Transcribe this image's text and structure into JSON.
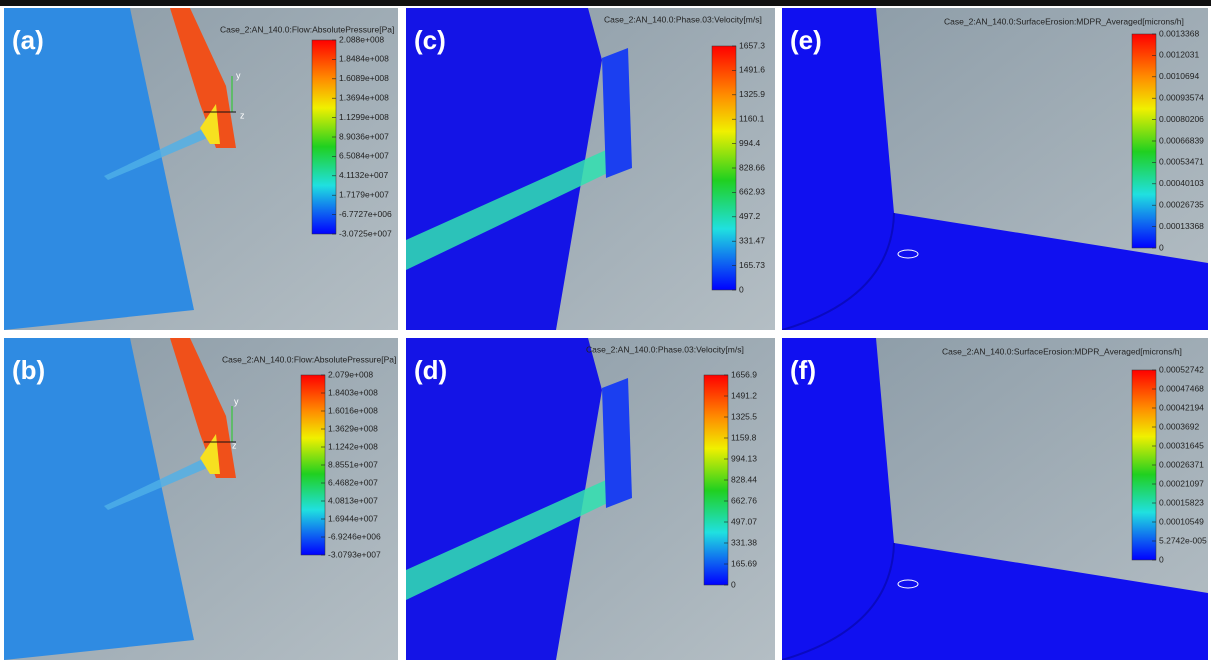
{
  "panels": [
    {
      "label": "(a)",
      "title": "Case_2:AN_140.0:Flow:AbsolutePressure[Pa]",
      "axes": [
        "y",
        "z"
      ],
      "ticks": [
        "2.088e+008",
        "1.8484e+008",
        "1.6089e+008",
        "1.3694e+008",
        "1.1299e+008",
        "8.9036e+007",
        "6.5084e+007",
        "4.1132e+007",
        "1.7179e+007",
        "-6.7727e+006",
        "-3.0725e+007"
      ]
    },
    {
      "label": "(c)",
      "title": "Case_2:AN_140.0:Phase.03:Velocity[m/s]",
      "ticks": [
        "1657.3",
        "1491.6",
        "1325.9",
        "1160.1",
        "994.4",
        "828.66",
        "662.93",
        "497.2",
        "331.47",
        "165.73",
        "0"
      ]
    },
    {
      "label": "(e)",
      "title": "Case_2:AN_140.0:SurfaceErosion:MDPR_Averaged[microns/h]",
      "ticks": [
        "0.0013368",
        "0.0012031",
        "0.0010694",
        "0.00093574",
        "0.00080206",
        "0.00066839",
        "0.00053471",
        "0.00040103",
        "0.00026735",
        "0.00013368",
        "0"
      ]
    },
    {
      "label": "(b)",
      "title": "Case_2:AN_140.0:Flow:AbsolutePressure[Pa]",
      "axes": [
        "y",
        "z"
      ],
      "ticks": [
        "2.079e+008",
        "1.8403e+008",
        "1.6016e+008",
        "1.3629e+008",
        "1.1242e+008",
        "8.8551e+007",
        "6.4682e+007",
        "4.0813e+007",
        "1.6944e+007",
        "-6.9246e+006",
        "-3.0793e+007"
      ]
    },
    {
      "label": "(d)",
      "title": "Case_2:AN_140.0:Phase.03:Velocity[m/s]",
      "ticks": [
        "1656.9",
        "1491.2",
        "1325.5",
        "1159.8",
        "994.13",
        "828.44",
        "662.76",
        "497.07",
        "331.38",
        "165.69",
        "0"
      ]
    },
    {
      "label": "(f)",
      "title": "Case_2:AN_140.0:SurfaceErosion:MDPR_Averaged[microns/h]",
      "ticks": [
        "0.00052742",
        "0.00047468",
        "0.00042194",
        "0.0003692",
        "0.00031645",
        "0.00026371",
        "0.00021097",
        "0.00015823",
        "0.00010549",
        "5.2742e-005",
        "0"
      ]
    }
  ]
}
